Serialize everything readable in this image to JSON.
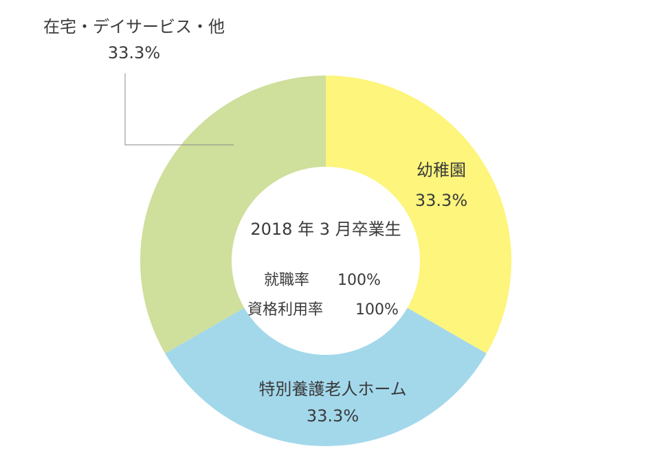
{
  "chart_data": {
    "type": "pie",
    "categories": [
      "幼稚園",
      "特別養護老人ホーム",
      "在宅・デイサービス・他"
    ],
    "values": [
      33.3,
      33.3,
      33.3
    ],
    "value_labels": [
      "33.3%",
      "33.3%",
      "33.3%"
    ],
    "colors": [
      "#fdf57c",
      "#a3d8eb",
      "#cfdf9c"
    ],
    "donut": true,
    "center": {
      "title": "2018 年 3 月卒業生",
      "stats": [
        {
          "label": "就職率",
          "value": "100%"
        },
        {
          "label": "資格利用率",
          "value": "100%"
        }
      ]
    }
  }
}
